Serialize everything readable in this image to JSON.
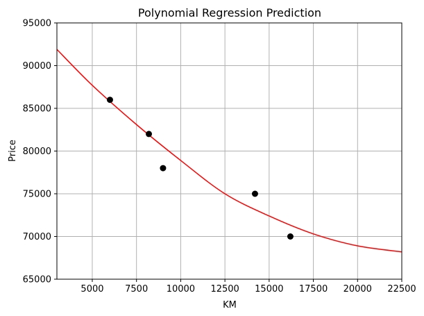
{
  "chart_data": {
    "type": "scatter",
    "title": "Polynomial Regression Prediction",
    "xlabel": "KM",
    "ylabel": "Price",
    "xlim": [
      3000,
      22500
    ],
    "ylim": [
      65000,
      95000
    ],
    "x_ticks": [
      5000,
      7500,
      10000,
      12500,
      15000,
      17500,
      20000,
      22500
    ],
    "y_ticks": [
      65000,
      70000,
      75000,
      80000,
      85000,
      90000,
      95000
    ],
    "grid": true,
    "points": [
      {
        "x": 6000,
        "y": 86000
      },
      {
        "x": 8200,
        "y": 82000
      },
      {
        "x": 9000,
        "y": 78000
      },
      {
        "x": 14200,
        "y": 75000
      },
      {
        "x": 16200,
        "y": 70000
      }
    ],
    "fit_curve": {
      "x": [
        3000,
        5000,
        7500,
        10000,
        12500,
        15000,
        17500,
        20000,
        22500
      ],
      "y": [
        91900,
        87700,
        83100,
        78900,
        75000,
        72400,
        70300,
        68900,
        68200
      ]
    },
    "colors": {
      "points": "#000000",
      "curve": "#ff0000",
      "grid": "#b0b0b0"
    }
  }
}
